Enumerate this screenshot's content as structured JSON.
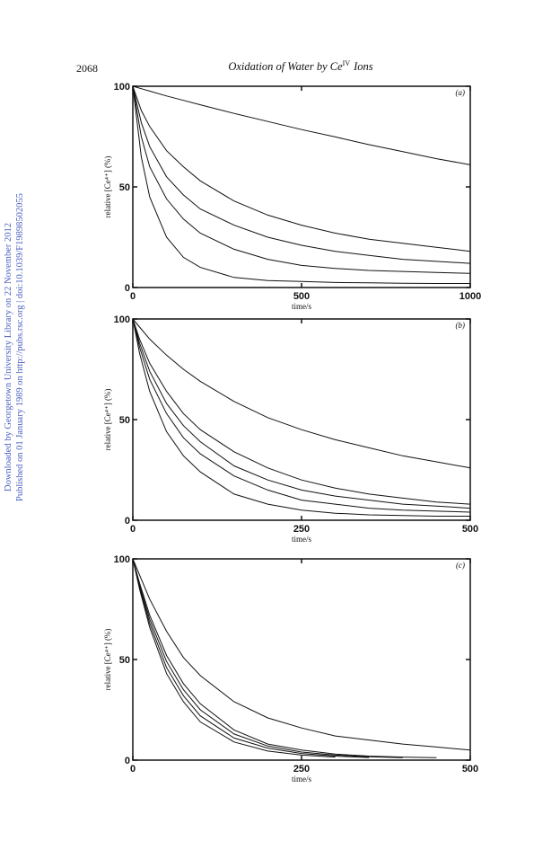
{
  "header": {
    "page_number": "2068",
    "title": "Oxidation of Water by Ce",
    "title_sup": "IV",
    "title_end": "Ions"
  },
  "sidebar": [
    "Downloaded by Georgetown University Library on 22 November 2012",
    "Published on 01 January 1989 on http://pubs.rsc.org | doi:10.1039/F19898502055"
  ],
  "chart_data": [
    {
      "type": "line",
      "panel_label": "(a)",
      "xlabel": "time/s",
      "ylabel": "relative [Ce⁴⁺] (%)",
      "xlim": [
        0,
        1000
      ],
      "ylim": [
        0,
        100
      ],
      "xticks": [
        0,
        500,
        1000
      ],
      "yticks": [
        0,
        50,
        100
      ],
      "color": "#111111",
      "x": [
        0,
        25,
        50,
        100,
        150,
        200,
        300,
        400,
        500,
        600,
        700,
        800,
        900,
        1000
      ],
      "series": [
        {
          "values": [
            100,
            98.8,
            97.6,
            95.2,
            93,
            90.8,
            86.5,
            82.5,
            78.5,
            74.8,
            71,
            67.5,
            64,
            61
          ]
        },
        {
          "values": [
            100,
            88,
            80,
            68,
            60,
            53,
            43,
            36,
            31,
            27,
            24,
            22,
            20,
            18
          ]
        },
        {
          "values": [
            100,
            82,
            70,
            55,
            46,
            39,
            31,
            25,
            21,
            18,
            16,
            14,
            13,
            12
          ]
        },
        {
          "values": [
            100,
            75,
            60,
            44,
            34,
            27,
            19,
            14,
            11,
            9.5,
            8.5,
            8,
            7.5,
            7
          ]
        },
        {
          "values": [
            100,
            65,
            45,
            25,
            15,
            10,
            5,
            3.5,
            3,
            2.5,
            2.3,
            2.1,
            2,
            2
          ]
        }
      ]
    },
    {
      "type": "line",
      "panel_label": "(b)",
      "xlabel": "time/s",
      "ylabel": "relative [Ce⁴⁺] (%)",
      "xlim": [
        0,
        500
      ],
      "ylim": [
        0,
        100
      ],
      "xticks": [
        0,
        250,
        500
      ],
      "yticks": [
        0,
        50,
        100
      ],
      "color": "#111111",
      "x": [
        0,
        10,
        25,
        50,
        75,
        100,
        150,
        200,
        250,
        300,
        350,
        400,
        450,
        500
      ],
      "series": [
        {
          "values": [
            100,
            96,
            90,
            82,
            75,
            69,
            59,
            51,
            45,
            40,
            36,
            32,
            29,
            26
          ]
        },
        {
          "values": [
            100,
            90,
            78,
            64,
            53,
            45,
            34,
            26,
            20,
            16,
            13,
            11,
            9,
            8
          ]
        },
        {
          "values": [
            100,
            88,
            74,
            58,
            47,
            39,
            27,
            20,
            15,
            12,
            10,
            8,
            7,
            6
          ]
        },
        {
          "values": [
            100,
            86,
            70,
            53,
            41,
            33,
            22,
            15,
            10,
            8,
            6,
            5,
            4.5,
            4
          ]
        },
        {
          "values": [
            100,
            83,
            64,
            44,
            32,
            24,
            13,
            8,
            5,
            3.5,
            2.7,
            2.3,
            2,
            2
          ]
        }
      ]
    },
    {
      "type": "line",
      "panel_label": "(c)",
      "xlabel": "time/s",
      "ylabel": "relative [Ce⁴⁺] (%)",
      "xlim": [
        0,
        500
      ],
      "ylim": [
        0,
        100
      ],
      "xticks": [
        0,
        250,
        500
      ],
      "yticks": [
        0,
        50,
        100
      ],
      "color": "#111111",
      "x": [
        0,
        10,
        25,
        50,
        75,
        100,
        150,
        200,
        250,
        300,
        350,
        400,
        450,
        500
      ],
      "series": [
        {
          "values": [
            100,
            92,
            80,
            64,
            51,
            42,
            29,
            21,
            16,
            12,
            10,
            8,
            6.5,
            5
          ]
        },
        {
          "values": [
            100,
            88,
            72,
            52,
            38,
            28,
            15,
            8,
            5,
            3,
            2,
            1.5,
            1.2,
            null
          ]
        },
        {
          "values": [
            100,
            87,
            70,
            49,
            35,
            25,
            13,
            7,
            4,
            2.5,
            1.7,
            1.2,
            null,
            null
          ]
        },
        {
          "values": [
            100,
            86,
            68,
            46,
            32,
            22,
            11,
            6,
            3.3,
            2,
            1.3,
            null,
            null,
            null
          ]
        },
        {
          "values": [
            100,
            85,
            66,
            43,
            29,
            19,
            9,
            4.5,
            2.5,
            1.5,
            null,
            null,
            null,
            null
          ]
        }
      ]
    }
  ]
}
